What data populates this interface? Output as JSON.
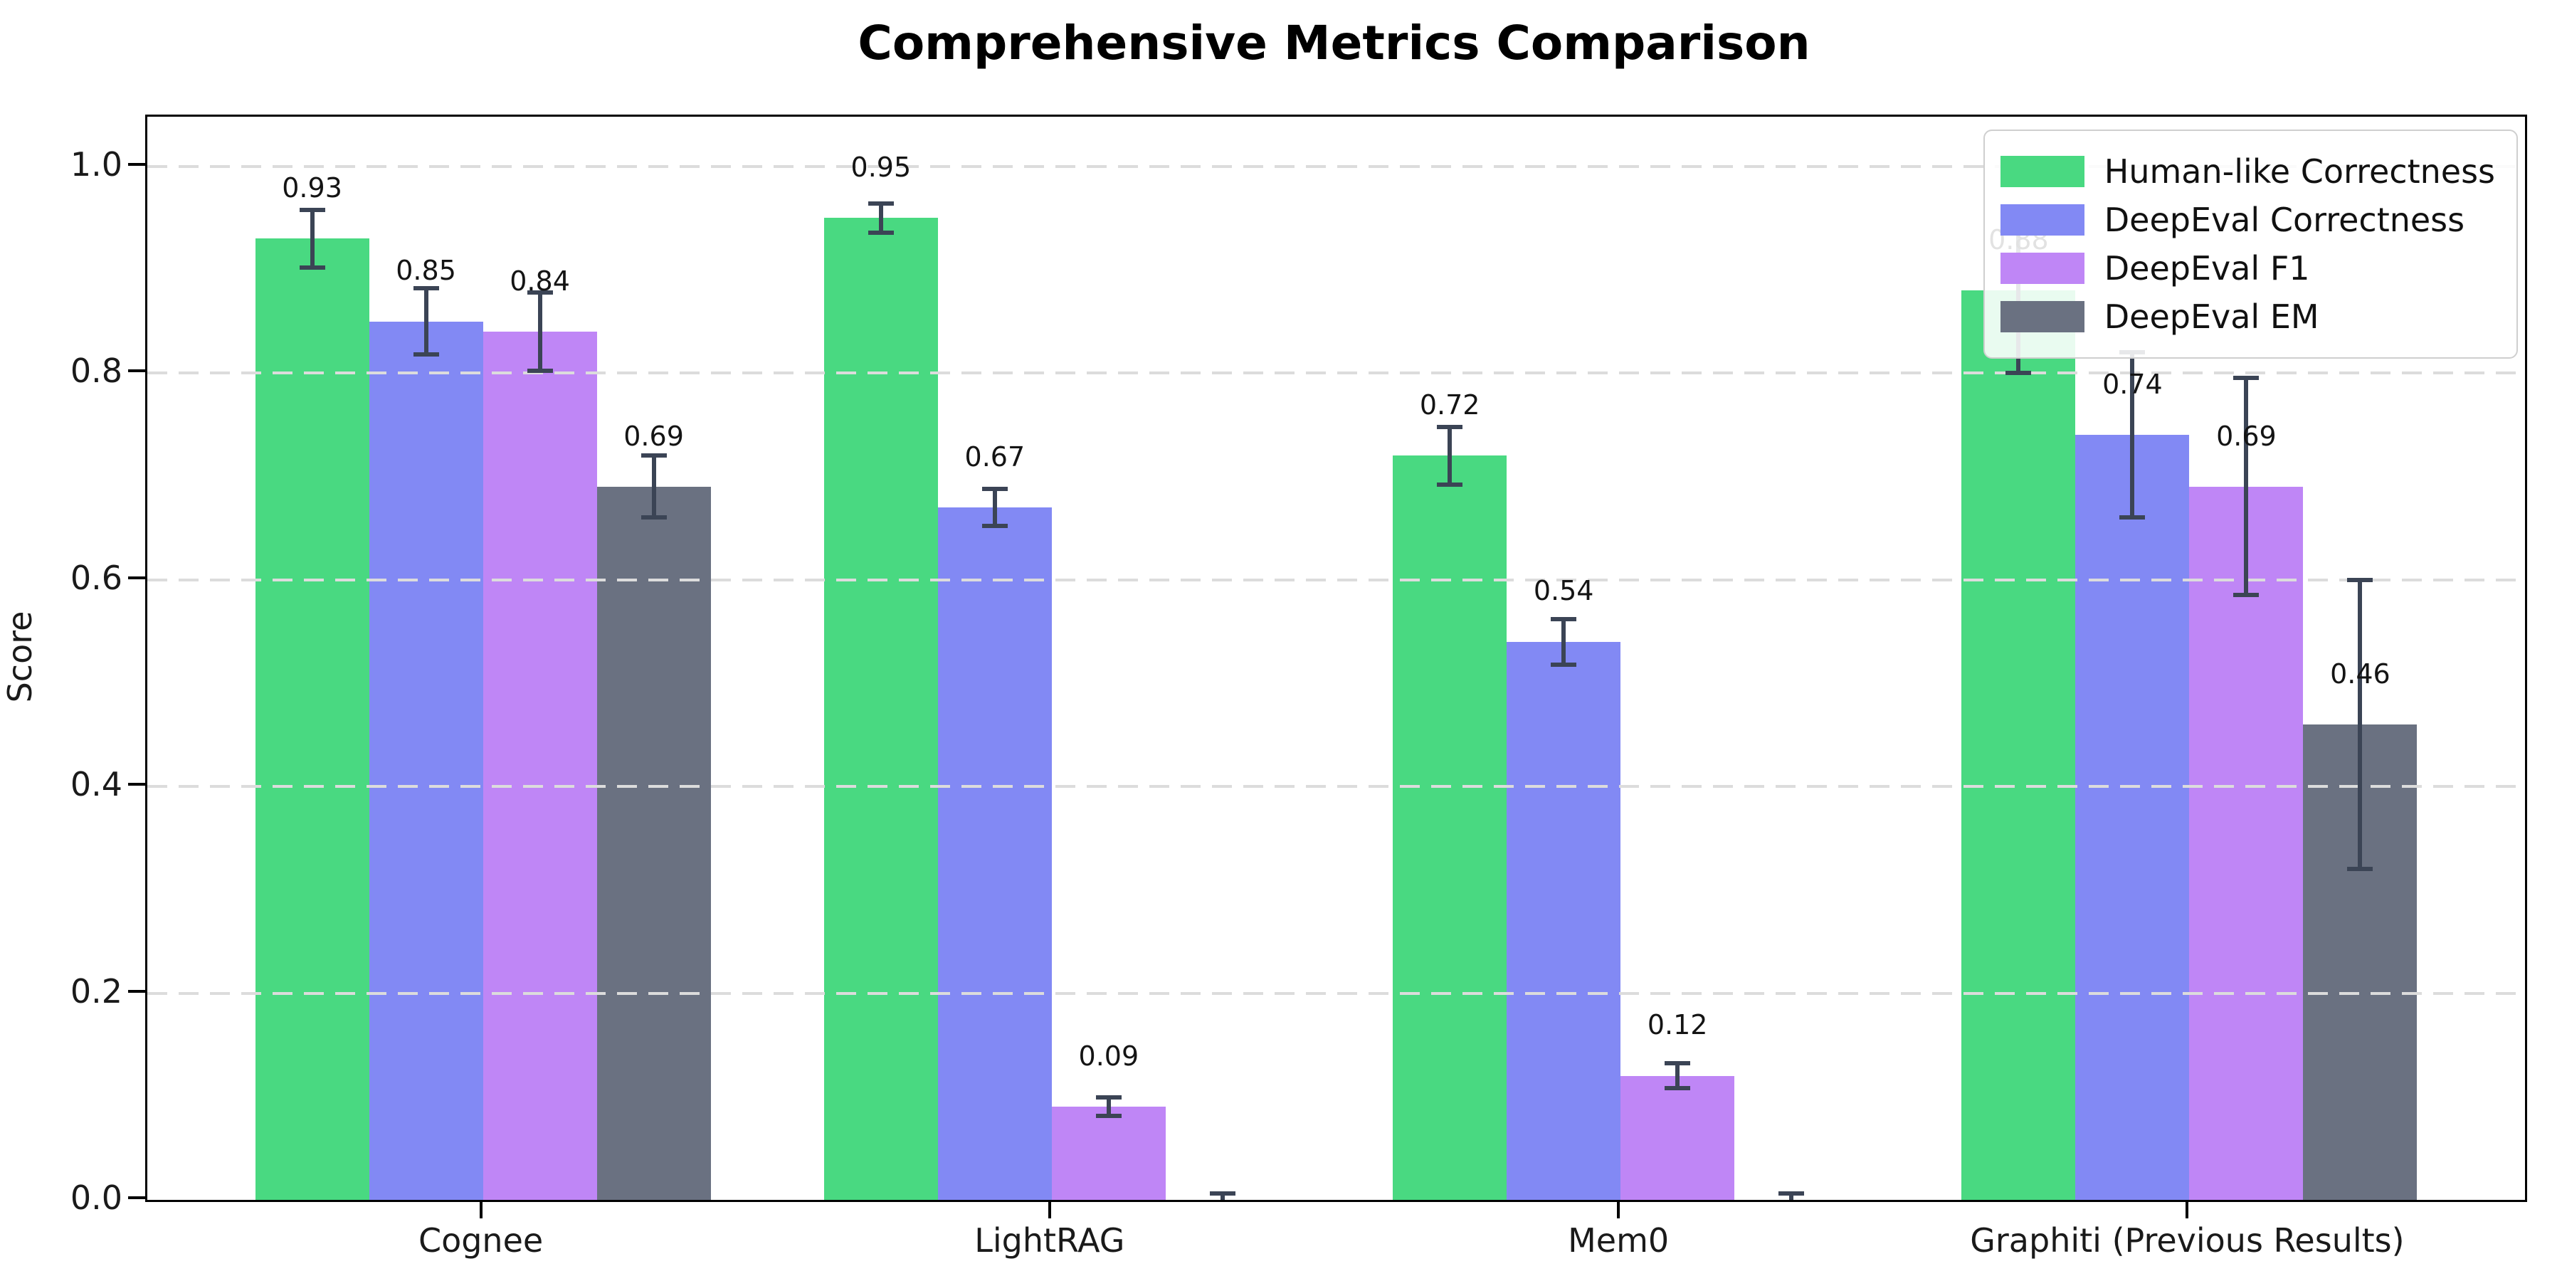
{
  "chart_data": {
    "type": "bar",
    "title": "Comprehensive Metrics Comparison",
    "ylabel": "Score",
    "xlabel": "",
    "categories": [
      "Cognee",
      "LightRAG",
      "Mem0",
      "Graphiti (Previous Results)"
    ],
    "series": [
      {
        "name": "Human-like Correctness",
        "color": "#49d981",
        "values": [
          0.93,
          0.95,
          0.72,
          0.88
        ],
        "errors": [
          0.028,
          0.014,
          0.028,
          0.08
        ],
        "value_labels": [
          "0.93",
          "0.95",
          "0.72",
          "0.88"
        ]
      },
      {
        "name": "DeepEval Correctness",
        "color": "#8289f4",
        "values": [
          0.85,
          0.67,
          0.54,
          0.74
        ],
        "errors": [
          0.032,
          0.018,
          0.022,
          0.08
        ],
        "value_labels": [
          "0.85",
          "0.67",
          "0.54",
          "0.74"
        ]
      },
      {
        "name": "DeepEval F1",
        "color": "#bf86f6",
        "values": [
          0.84,
          0.09,
          0.12,
          0.69
        ],
        "errors": [
          0.038,
          0.009,
          0.012,
          0.105
        ],
        "value_labels": [
          "0.84",
          "0.09",
          "0.12",
          "0.69"
        ]
      },
      {
        "name": "DeepEval EM",
        "color": "#6a7181",
        "values": [
          0.69,
          0.0,
          0.0,
          0.46
        ],
        "errors": [
          0.03,
          0.006,
          0.006,
          0.14
        ],
        "value_labels": [
          "0.69",
          "",
          "",
          "0.46"
        ]
      }
    ],
    "ytick_values": [
      0.0,
      0.2,
      0.4,
      0.6,
      0.8,
      1.0
    ],
    "ytick_labels": [
      "0.0",
      "0.2",
      "0.4",
      "0.6",
      "0.8",
      "1.0"
    ],
    "ylim": [
      0,
      1.048
    ],
    "grid": "horizontal-dashed",
    "gridline_color": "#dcdcdc",
    "error_bar_color": "#3b4455",
    "legend_position": "upper right",
    "background_color": "#ffffff"
  }
}
